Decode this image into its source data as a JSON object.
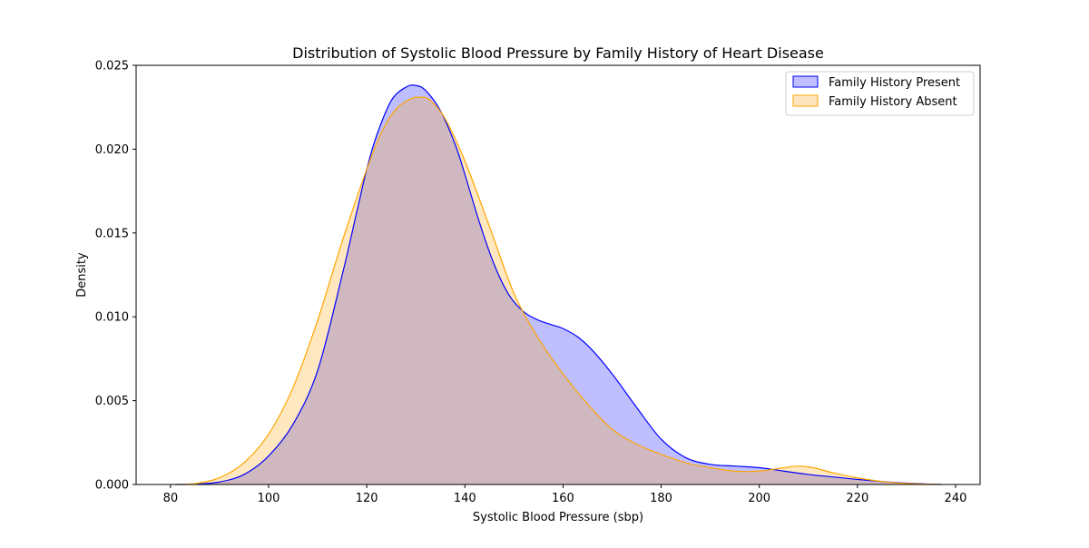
{
  "chart_data": {
    "type": "area",
    "title": "Distribution of Systolic Blood Pressure by Family History of Heart Disease",
    "xlabel": "Systolic Blood Pressure (sbp)",
    "ylabel": "Density",
    "xlim": [
      73,
      245
    ],
    "ylim": [
      0,
      0.025
    ],
    "x_ticks": [
      80,
      100,
      120,
      140,
      160,
      180,
      200,
      220,
      240
    ],
    "x_tick_labels": [
      "80",
      "100",
      "120",
      "140",
      "160",
      "180",
      "200",
      "220",
      "240"
    ],
    "y_ticks": [
      0,
      0.005,
      0.01,
      0.015,
      0.02,
      0.025
    ],
    "y_tick_labels": [
      "0.000",
      "0.005",
      "0.010",
      "0.015",
      "0.020",
      "0.025"
    ],
    "grid": false,
    "legend": "top-right",
    "series": [
      {
        "name": "Family History Present",
        "color": "#0000ff",
        "fill": "#bfbfff",
        "x": [
          81,
          85,
          90,
          95,
          100,
          105,
          110,
          115,
          118,
          120,
          122,
          125,
          128,
          130,
          132,
          135,
          138,
          140,
          143,
          146,
          149,
          152,
          155,
          158,
          160,
          163,
          166,
          170,
          175,
          180,
          185,
          190,
          195,
          200,
          205,
          210,
          215,
          220,
          225,
          230,
          234,
          237
        ],
        "y": [
          0.0,
          2e-05,
          0.00015,
          0.0006,
          0.0017,
          0.0036,
          0.0068,
          0.0125,
          0.0163,
          0.0188,
          0.0208,
          0.0229,
          0.0237,
          0.0238,
          0.0235,
          0.0223,
          0.0203,
          0.0185,
          0.0156,
          0.0131,
          0.0113,
          0.0103,
          0.0098,
          0.0095,
          0.0093,
          0.0088,
          0.008,
          0.0066,
          0.0046,
          0.0027,
          0.0016,
          0.0012,
          0.0011,
          0.001,
          0.0008,
          0.0006,
          0.00045,
          0.0003,
          0.00018,
          8e-05,
          3e-05,
          0.0
        ]
      },
      {
        "name": "Family History Absent",
        "color": "#ffa500",
        "fill": "#ffe5bf",
        "x": [
          81,
          85,
          90,
          95,
          100,
          105,
          110,
          115,
          120,
          123,
          126,
          129,
          131,
          133,
          136,
          140,
          145,
          150,
          155,
          160,
          165,
          170,
          175,
          180,
          185,
          190,
          195,
          200,
          205,
          208,
          211,
          215,
          220,
          225,
          230,
          234,
          237
        ],
        "y": [
          0.0,
          5e-05,
          0.0004,
          0.0013,
          0.003,
          0.0058,
          0.0098,
          0.0145,
          0.0188,
          0.021,
          0.0224,
          0.023,
          0.0231,
          0.0229,
          0.0218,
          0.0193,
          0.0154,
          0.0114,
          0.0087,
          0.0066,
          0.0048,
          0.0033,
          0.0024,
          0.0018,
          0.0013,
          0.001,
          0.0008,
          0.0008,
          0.001,
          0.0011,
          0.001,
          0.0007,
          0.0004,
          0.00018,
          6e-05,
          2e-05,
          0.0
        ]
      }
    ]
  }
}
